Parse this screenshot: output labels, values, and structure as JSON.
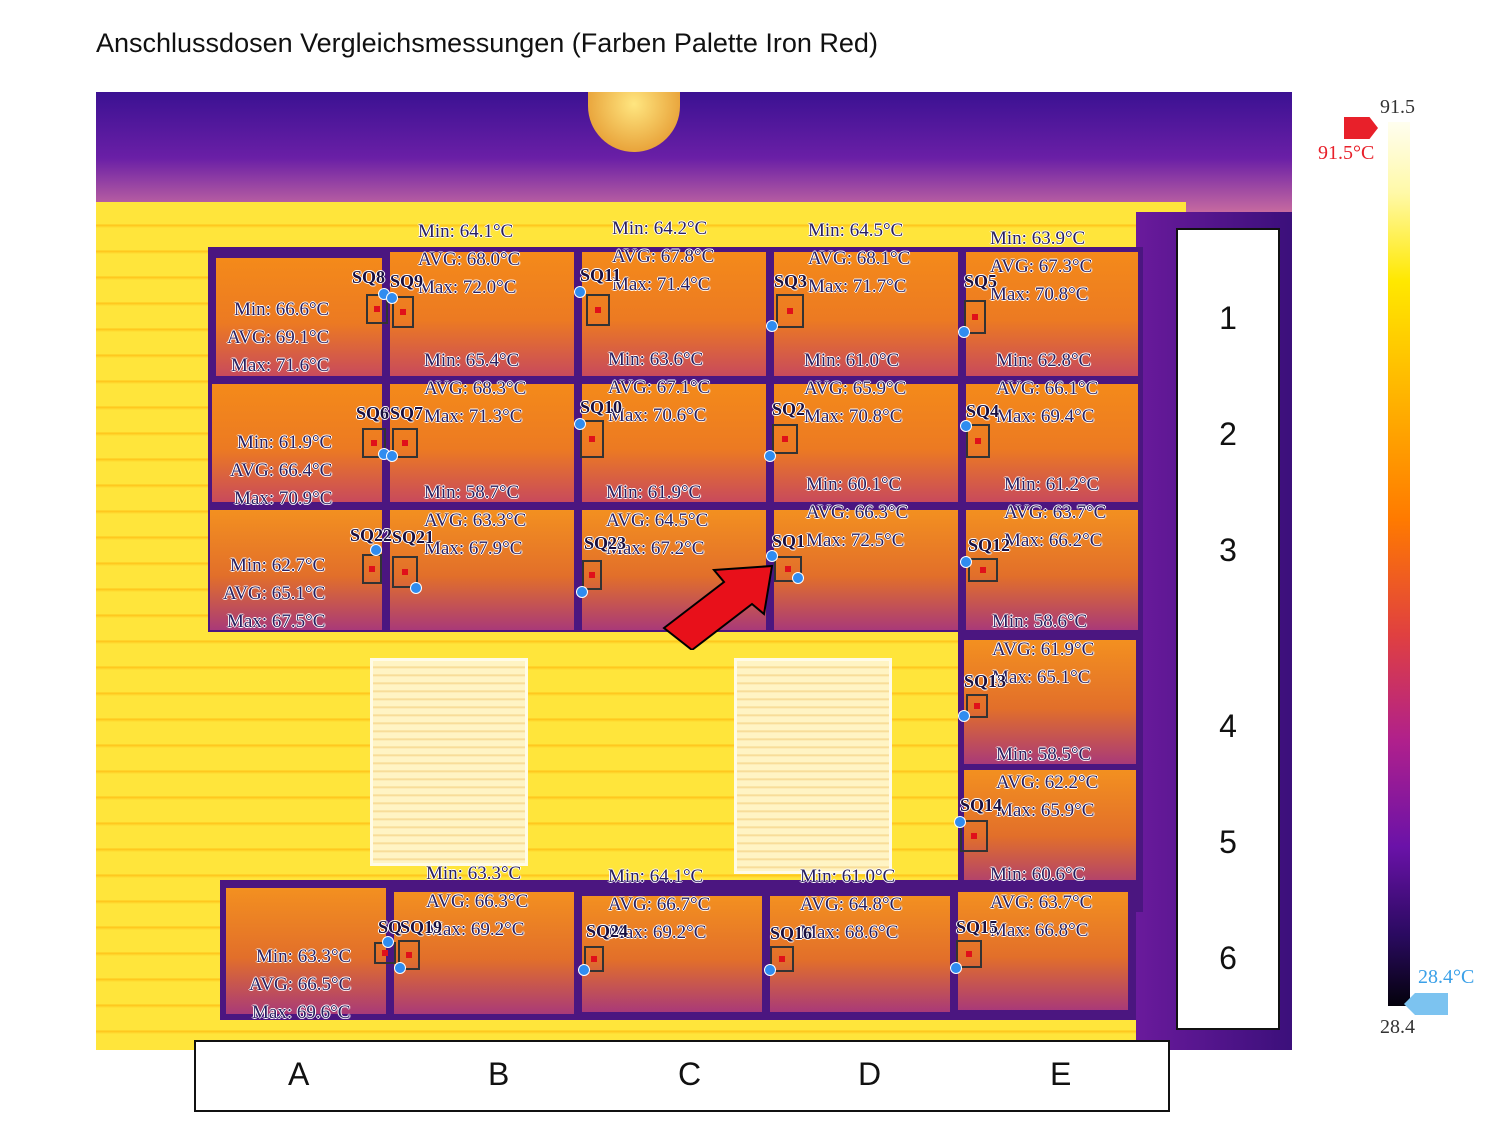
{
  "title": "Anschlussdosen Vergleichsmessungen (Farben Palette Iron Red)",
  "rows": [
    "1",
    "2",
    "3",
    "4",
    "5",
    "6"
  ],
  "columns": [
    "A",
    "B",
    "C",
    "D",
    "E"
  ],
  "scale": {
    "max": "91.5",
    "min": "28.4",
    "max_marker": "91.5°C",
    "min_marker": "28.4°C"
  },
  "measurements": {
    "A1": {
      "min": "Min: 66.6°C",
      "avg": "AVG: 69.1°C",
      "max": "Max: 71.6°C"
    },
    "B1": {
      "min": "Min: 64.1°C",
      "avg": "AVG: 68.0°C",
      "max": "Max: 72.0°C"
    },
    "C1": {
      "min": "Min: 64.2°C",
      "avg": "AVG: 67.8°C",
      "max": "Max: 71.4°C"
    },
    "D1": {
      "min": "Min: 64.5°C",
      "avg": "AVG: 68.1°C",
      "max": "Max: 71.7°C"
    },
    "E1": {
      "min": "Min: 63.9°C",
      "avg": "AVG: 67.3°C",
      "max": "Max: 70.8°C"
    },
    "A2": {
      "min": "Min: 61.9°C",
      "avg": "AVG: 66.4°C",
      "max": "Max: 70.9°C"
    },
    "B2": {
      "min": "Min: 65.4°C",
      "avg": "AVG: 68.3°C",
      "max": "Max: 71.3°C"
    },
    "C2": {
      "min": "Min: 63.6°C",
      "avg": "AVG: 67.1°C",
      "max": "Max: 70.6°C"
    },
    "D2": {
      "min": "Min: 61.0°C",
      "avg": "AVG: 65.9°C",
      "max": "Max: 70.8°C"
    },
    "E2": {
      "min": "Min: 62.8°C",
      "avg": "AVG: 66.1°C",
      "max": "Max: 69.4°C"
    },
    "A3": {
      "min": "Min: 62.7°C",
      "avg": "AVG: 65.1°C",
      "max": "Max: 67.5°C"
    },
    "B3": {
      "min": "Min: 58.7°C",
      "avg": "AVG: 63.3°C",
      "max": "Max: 67.9°C"
    },
    "C3": {
      "min": "Min: 61.9°C",
      "avg": "AVG: 64.5°C",
      "max": "Max: 67.2°C"
    },
    "D3": {
      "min": "Min: 60.1°C",
      "avg": "AVG: 66.3°C",
      "max": "Max: 72.5°C"
    },
    "E3": {
      "min": "Min: 61.2°C",
      "avg": "AVG: 63.7°C",
      "max": "Max: 66.2°C"
    },
    "E4": {
      "min": "Min: 58.6°C",
      "avg": "AVG: 61.9°C",
      "max": "Max: 65.1°C"
    },
    "E5": {
      "min": "Min: 58.5°C",
      "avg": "AVG: 62.2°C",
      "max": "Max: 65.9°C"
    },
    "A6": {
      "min": "Min: 63.3°C",
      "avg": "AVG: 66.5°C",
      "max": "Max: 69.6°C"
    },
    "B6": {
      "min": "Min: 63.3°C",
      "avg": "AVG: 66.3°C",
      "max": "Max: 69.2°C"
    },
    "C6": {
      "min": "Min: 64.1°C",
      "avg": "AVG: 66.7°C",
      "max": "Max: 69.2°C"
    },
    "D6": {
      "min": "Min: 61.0°C",
      "avg": "AVG: 64.8°C",
      "max": "Max: 68.6°C"
    },
    "E6": {
      "min": "Min: 60.6°C",
      "avg": "AVG: 63.7°C",
      "max": "Max: 66.8°C"
    }
  },
  "spots": {
    "sq1": "SQ1",
    "sq2": "SQ2",
    "sq3": "SQ3",
    "sq4": "SQ4",
    "sq5": "SQ5",
    "sq6": "SQ6",
    "sq7": "SQ7",
    "sq8": "SQ8",
    "sq9": "SQ9",
    "sq10": "SQ10",
    "sq11": "SQ11",
    "sq12": "SQ12",
    "sq13": "SQ13",
    "sq14": "SQ14",
    "sq15": "SQ15",
    "sq16": "SQ16",
    "sq19": "SQ19",
    "sq21": "SQ21",
    "sq22": "SQ22",
    "sq23": "SQ23",
    "sq24": "SQ24",
    "sqa6": "SQ"
  },
  "colors": {
    "highlight_arrow": "#e8101a",
    "spot_marker": "#2f8cf0"
  }
}
